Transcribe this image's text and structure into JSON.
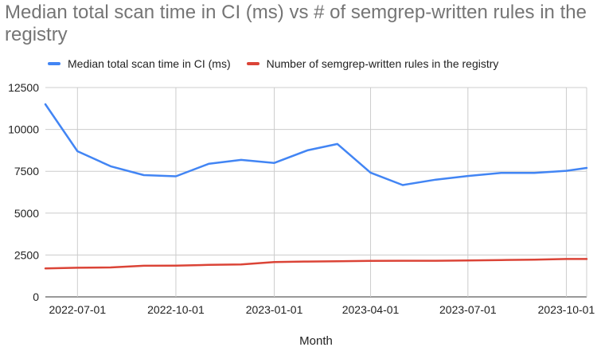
{
  "chart_data": {
    "type": "line",
    "title": "Median total scan time in CI (ms) vs # of semgrep-written rules in the registry",
    "xlabel": "Month",
    "ylabel": "",
    "ylim": [
      0,
      12500
    ],
    "grid": true,
    "legend_position": "top",
    "y_ticks": [
      "0",
      "2500",
      "5000",
      "7500",
      "10000",
      "12500"
    ],
    "x_ticks": [
      "2022-07-01",
      "2022-10-01",
      "2023-01-01",
      "2023-04-01",
      "2023-07-01",
      "2023-10-01"
    ],
    "x_tick_dates": [
      "2022-07-01",
      "2022-10-01",
      "2023-01-01",
      "2023-04-01",
      "2023-07-01",
      "2023-10-01"
    ],
    "x_range": [
      "2022-06-01",
      "2023-10-20"
    ],
    "x": [
      "2022-06-01",
      "2022-07-01",
      "2022-08-01",
      "2022-09-01",
      "2022-10-01",
      "2022-11-01",
      "2022-12-01",
      "2023-01-01",
      "2023-02-01",
      "2023-03-01",
      "2023-04-01",
      "2023-05-01",
      "2023-06-01",
      "2023-07-01",
      "2023-08-01",
      "2023-09-01",
      "2023-10-01",
      "2023-10-20"
    ],
    "series": [
      {
        "name": "Median total scan time in CI (ms)",
        "color": "#4285f4",
        "values": [
          11500,
          8700,
          7800,
          7270,
          7200,
          7950,
          8180,
          8000,
          8750,
          9130,
          7420,
          6680,
          7000,
          7220,
          7400,
          7400,
          7530,
          7700
        ]
      },
      {
        "name": "Number of semgrep-written rules in the registry",
        "color": "#db4437",
        "values": [
          1700,
          1740,
          1760,
          1860,
          1870,
          1910,
          1940,
          2080,
          2110,
          2130,
          2150,
          2160,
          2160,
          2170,
          2200,
          2220,
          2260,
          2260
        ]
      }
    ]
  }
}
